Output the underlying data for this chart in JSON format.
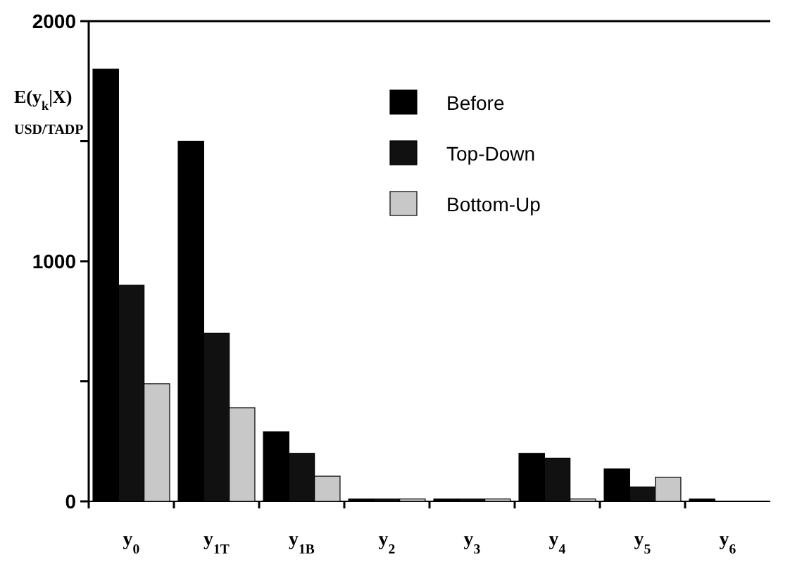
{
  "chart_data": {
    "type": "bar",
    "ylabel": "E(y$_{k}$|X)\nUSD/TADP",
    "categories": [
      "y$_{0}$",
      "y$_{1T}$",
      "y$_{1B}$",
      "y$_{2}$",
      "y$_{3}$",
      "y$_{4}$",
      "y$_{5}$",
      "y$_{6}$"
    ],
    "series": [
      {
        "name": "Before",
        "color": "#000000",
        "values": [
          1800,
          1500,
          290,
          10,
          10,
          200,
          135,
          10
        ]
      },
      {
        "name": "Top-Down",
        "color": "#111111",
        "values": [
          900,
          700,
          200,
          10,
          10,
          180,
          60,
          0
        ]
      },
      {
        "name": "Bottom-Up",
        "color": "#c8c8c8",
        "values": [
          490,
          390,
          105,
          10,
          10,
          10,
          100,
          0
        ]
      }
    ],
    "ylim": [
      0,
      2000
    ],
    "yticks": [
      0,
      {
        "value": 500,
        "label": null
      },
      1000,
      {
        "value": 1500,
        "label": null
      },
      2000
    ],
    "grid": false,
    "legend": "top right"
  }
}
